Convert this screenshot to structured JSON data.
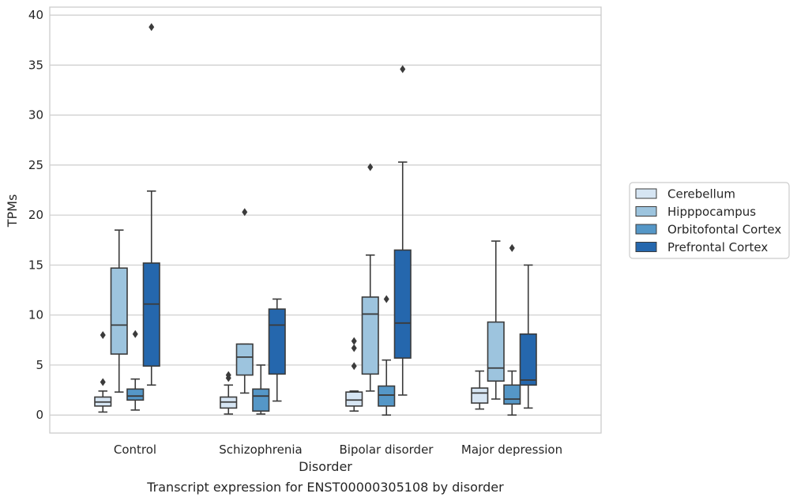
{
  "caption": "Transcript expression for ENST00000305108 by disorder",
  "chart_data": {
    "type": "boxplot",
    "xlabel": "Disorder",
    "ylabel": "TPMs",
    "ylim": [
      -1.8,
      40.8
    ],
    "yticks": [
      0,
      5,
      10,
      15,
      20,
      25,
      30,
      35,
      40
    ],
    "grid": "horizontal",
    "legend_position": "right",
    "categories": [
      "Control",
      "Schizophrenia",
      "Bipolar disorder",
      "Major depression"
    ],
    "series": [
      {
        "name": "Cerebellum",
        "color": "#d6e5f3",
        "boxes": [
          {
            "whislo": 0.3,
            "q1": 0.9,
            "med": 1.3,
            "q3": 1.8,
            "whishi": 2.4,
            "fliers": [
              3.3,
              8.0
            ]
          },
          {
            "whislo": 0.1,
            "q1": 0.7,
            "med": 1.3,
            "q3": 1.8,
            "whishi": 3.0,
            "fliers": [
              3.7,
              4.0
            ]
          },
          {
            "whislo": 0.4,
            "q1": 0.9,
            "med": 1.5,
            "q3": 2.3,
            "whishi": 2.4,
            "fliers": [
              4.9,
              6.7,
              7.4
            ]
          },
          {
            "whislo": 0.6,
            "q1": 1.2,
            "med": 2.2,
            "q3": 2.7,
            "whishi": 4.4,
            "fliers": []
          }
        ]
      },
      {
        "name": "Hipppocampus",
        "color": "#9dc4de",
        "boxes": [
          {
            "whislo": 2.3,
            "q1": 6.1,
            "med": 9.0,
            "q3": 14.7,
            "whishi": 18.5,
            "fliers": []
          },
          {
            "whislo": 2.2,
            "q1": 4.0,
            "med": 5.8,
            "q3": 7.1,
            "whishi": 7.1,
            "fliers": [
              20.3
            ]
          },
          {
            "whislo": 2.4,
            "q1": 4.1,
            "med": 10.1,
            "q3": 11.8,
            "whishi": 16.0,
            "fliers": [
              24.8
            ]
          },
          {
            "whislo": 1.6,
            "q1": 3.4,
            "med": 4.7,
            "q3": 9.3,
            "whishi": 17.4,
            "fliers": []
          }
        ]
      },
      {
        "name": "Orbitofontal Cortex",
        "color": "#5597c7",
        "boxes": [
          {
            "whislo": 0.5,
            "q1": 1.5,
            "med": 1.9,
            "q3": 2.6,
            "whishi": 3.6,
            "fliers": [
              8.1
            ]
          },
          {
            "whislo": 0.1,
            "q1": 0.4,
            "med": 1.9,
            "q3": 2.6,
            "whishi": 5.0,
            "fliers": []
          },
          {
            "whislo": 0.0,
            "q1": 0.9,
            "med": 2.0,
            "q3": 2.9,
            "whishi": 5.5,
            "fliers": [
              11.6
            ]
          },
          {
            "whislo": 0.0,
            "q1": 1.1,
            "med": 1.6,
            "q3": 3.0,
            "whishi": 4.4,
            "fliers": [
              16.7
            ]
          }
        ]
      },
      {
        "name": "Prefrontal Cortex",
        "color": "#2567ad",
        "boxes": [
          {
            "whislo": 3.0,
            "q1": 4.9,
            "med": 11.1,
            "q3": 15.2,
            "whishi": 22.4,
            "fliers": [
              38.8
            ]
          },
          {
            "whislo": 1.4,
            "q1": 4.1,
            "med": 9.0,
            "q3": 10.6,
            "whishi": 11.6,
            "fliers": []
          },
          {
            "whislo": 2.0,
            "q1": 5.7,
            "med": 9.2,
            "q3": 16.5,
            "whishi": 25.3,
            "fliers": [
              34.6
            ]
          },
          {
            "whislo": 0.7,
            "q1": 3.0,
            "med": 3.5,
            "q3": 8.1,
            "whishi": 15.0,
            "fliers": []
          }
        ]
      }
    ]
  }
}
